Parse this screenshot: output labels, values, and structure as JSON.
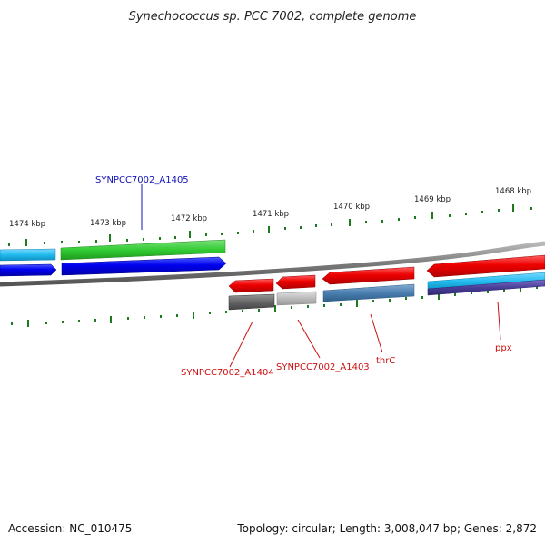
{
  "title": "Synechococcus sp. PCC 7002, complete genome",
  "footer": {
    "accession": "Accession: NC_010475",
    "summary": "Topology: circular; Length: 3,008,047 bp; Genes: 2,872"
  },
  "ruler_labels": [
    "1474 kbp",
    "1473 kbp",
    "1472 kbp",
    "1471 kbp",
    "1470 kbp",
    "1469 kbp",
    "1468 kbp"
  ],
  "genes": [
    {
      "label": "SYNPCC7002_A1405",
      "color": "#1111bb"
    },
    {
      "label": "SYNPCC7002_A1404",
      "color": "#cc1111"
    },
    {
      "label": "SYNPCC7002_A1403",
      "color": "#cc1111"
    },
    {
      "label": "thrC",
      "color": "#cc1111"
    },
    {
      "label": "ppx",
      "color": "#cc1111"
    }
  ],
  "colors": {
    "tick": "#1f7a1f",
    "backbone": "#8a8a8a",
    "forward_gene": "#0000ee",
    "reverse_gene": "#ee0000",
    "green_feature": "#33cc33",
    "cyan_feature": "#22bbee",
    "steel_feature": "#4a7fb0",
    "gray_feature": "#666666",
    "light_gray_feature": "#bbbbbb",
    "purple_feature": "#4a3f99"
  }
}
